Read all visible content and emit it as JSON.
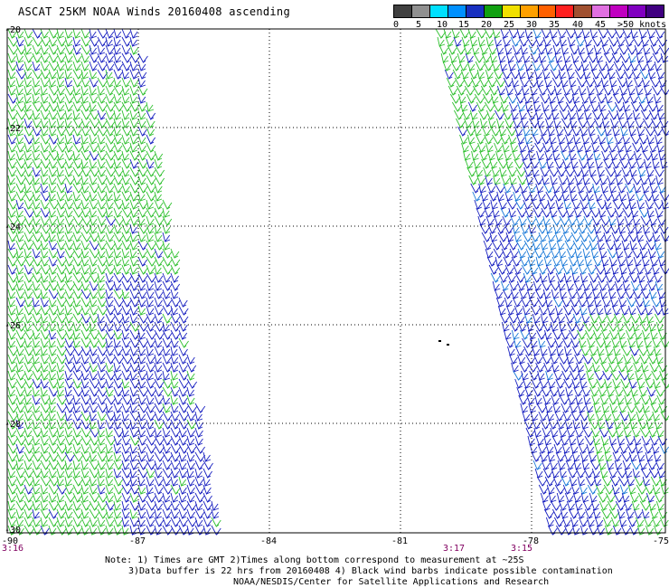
{
  "title": "ASCAT 25KM NOAA Winds 20160408 ascending",
  "legend": {
    "colors": [
      "#404040",
      "#909090",
      "#00e0ff",
      "#0090ff",
      "#1830c0",
      "#10a010",
      "#f0e000",
      "#ffa000",
      "#ff6000",
      "#ff2020",
      "#a05030",
      "#e070e0",
      "#c000c0",
      "#8000c0",
      "#400080"
    ],
    "labels": [
      "0",
      "5",
      "10",
      "15",
      "20",
      "25",
      "30",
      "35",
      "40",
      "45",
      ">50 knots"
    ]
  },
  "axes": {
    "lat_labels": [
      "-20",
      "-22",
      "-24",
      "-26",
      "-28",
      "-30"
    ],
    "lon_labels": [
      "-90",
      "-87",
      "-84",
      "-81",
      "-78",
      "-75"
    ]
  },
  "swath_times": {
    "left": "3:16",
    "center": "3:17",
    "right": "3:15"
  },
  "notes": {
    "line1": "Note: 1) Times are GMT 2)Times along bottom correspond to measurement at ~25S",
    "line2": "3)Data buffer is 22 hrs from 20160408 4) Black wind barbs indicate possible contamination",
    "line3": "NOAA/NESDIS/Center for Satellite Applications and Research"
  },
  "wind_colors": {
    "green": "#30c030",
    "blue": "#1820c0",
    "lightblue": "#1878d8"
  }
}
